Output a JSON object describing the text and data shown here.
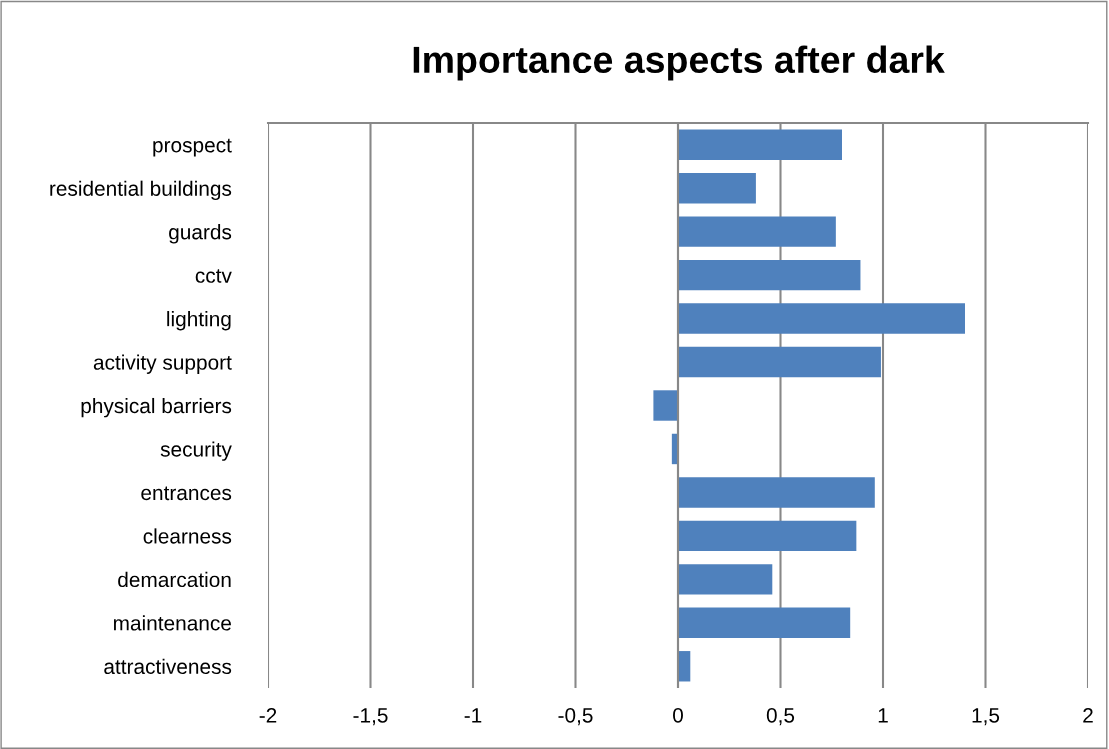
{
  "chart_data": {
    "type": "bar",
    "orientation": "horizontal",
    "title": "Importance aspects after dark",
    "categories": [
      "prospect",
      "residential buildings",
      "guards",
      "cctv",
      "lighting",
      "activity support",
      "physical barriers",
      "security",
      "entrances",
      "clearness",
      "demarcation",
      "maintenance",
      "attractiveness"
    ],
    "values": [
      0.8,
      0.38,
      0.77,
      0.89,
      1.4,
      0.99,
      -0.12,
      -0.03,
      0.96,
      0.87,
      0.46,
      0.84,
      0.06
    ],
    "color": "#4f81bd",
    "xlim": [
      -2,
      2
    ],
    "xticks": [
      -2,
      {
        "value": -1.5,
        "label": "-1,5"
      },
      -1,
      {
        "value": -0.5,
        "label": "-0,5"
      },
      0,
      {
        "value": 0.5,
        "label": "0,5"
      },
      1,
      {
        "value": 1.5,
        "label": "1,5"
      },
      2
    ],
    "grid": "x",
    "legend": false
  }
}
